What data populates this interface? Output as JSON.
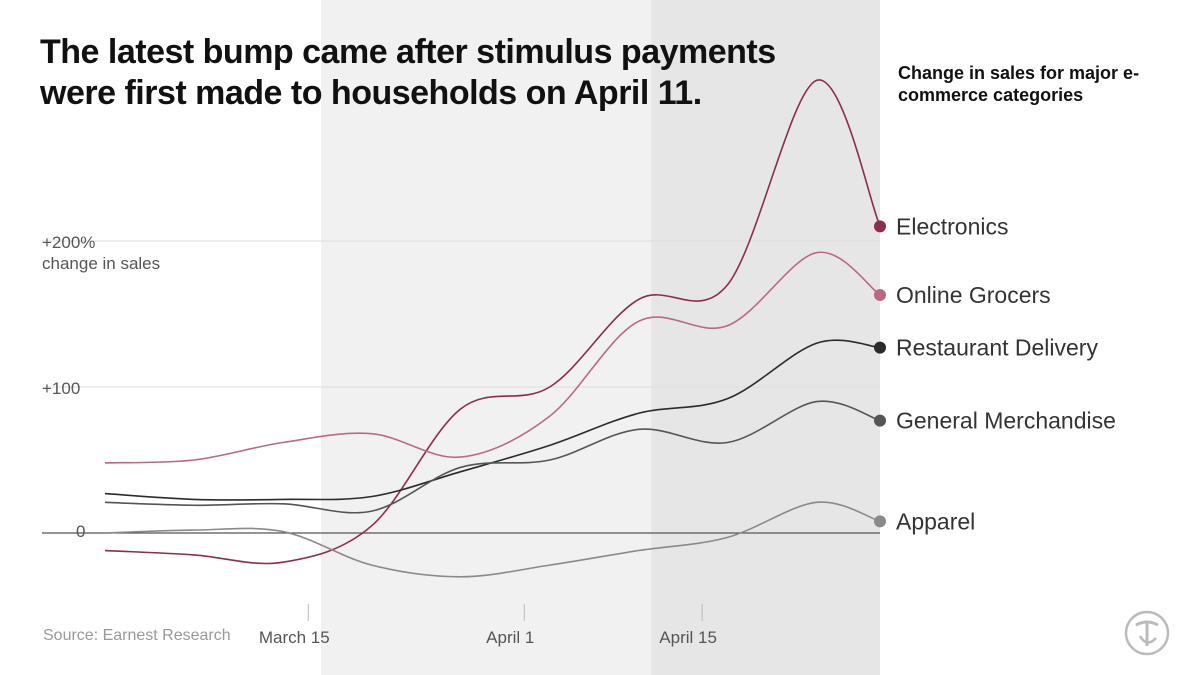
{
  "headline": "The latest bump came after stimulus payments were first made to households on April 11.",
  "legend_title": "Change in sales for major e-commerce categories",
  "source": "Source: Earnest Research",
  "y_unit_label": "change in sales",
  "logo": "nyt-logo",
  "colors": {
    "background": "#ffffff",
    "shade_light": "#f1f1f1",
    "shade_dark": "#e6e6e6",
    "grid": "#dddddd",
    "zero_line": "#555555",
    "tick_text": "#555555"
  },
  "chart_data": {
    "type": "line",
    "x_tick_labels": [
      "March 15",
      "April 1",
      "April 15"
    ],
    "y_tick_labels": [
      "+200%",
      "+100",
      "0"
    ],
    "y_ticks": [
      200,
      100,
      0
    ],
    "ylim": [
      -45,
      300
    ],
    "xlim": [
      "2020-02-28",
      "2020-04-29"
    ],
    "shaded_periods": [
      {
        "start": "2020-03-16",
        "end": "2020-04-29",
        "tone": "light"
      },
      {
        "start": "2020-04-11",
        "end": "2020-04-29",
        "tone": "dark"
      }
    ],
    "x": [
      "2020-02-28",
      "2020-03-06",
      "2020-03-13",
      "2020-03-20",
      "2020-03-27",
      "2020-04-03",
      "2020-04-10",
      "2020-04-17",
      "2020-04-24",
      "2020-04-29"
    ],
    "series": [
      {
        "name": "Electronics",
        "color": "#8b2c50",
        "values": [
          -12,
          -15,
          -20,
          5,
          85,
          100,
          160,
          170,
          310,
          210
        ]
      },
      {
        "name": "Online Grocers",
        "color": "#bb6980",
        "values": [
          48,
          50,
          62,
          68,
          52,
          80,
          145,
          142,
          192,
          163
        ]
      },
      {
        "name": "Restaurant Delivery",
        "color": "#2b2b2b",
        "values": [
          27,
          23,
          23,
          25,
          42,
          60,
          82,
          92,
          130,
          127
        ]
      },
      {
        "name": "General Merchandise",
        "color": "#555555",
        "values": [
          21,
          19,
          20,
          15,
          45,
          50,
          71,
          62,
          90,
          77
        ]
      },
      {
        "name": "Apparel",
        "color": "#8a8a8a",
        "values": [
          0,
          2,
          1,
          -22,
          -30,
          -22,
          -12,
          -3,
          21,
          8
        ]
      }
    ]
  }
}
